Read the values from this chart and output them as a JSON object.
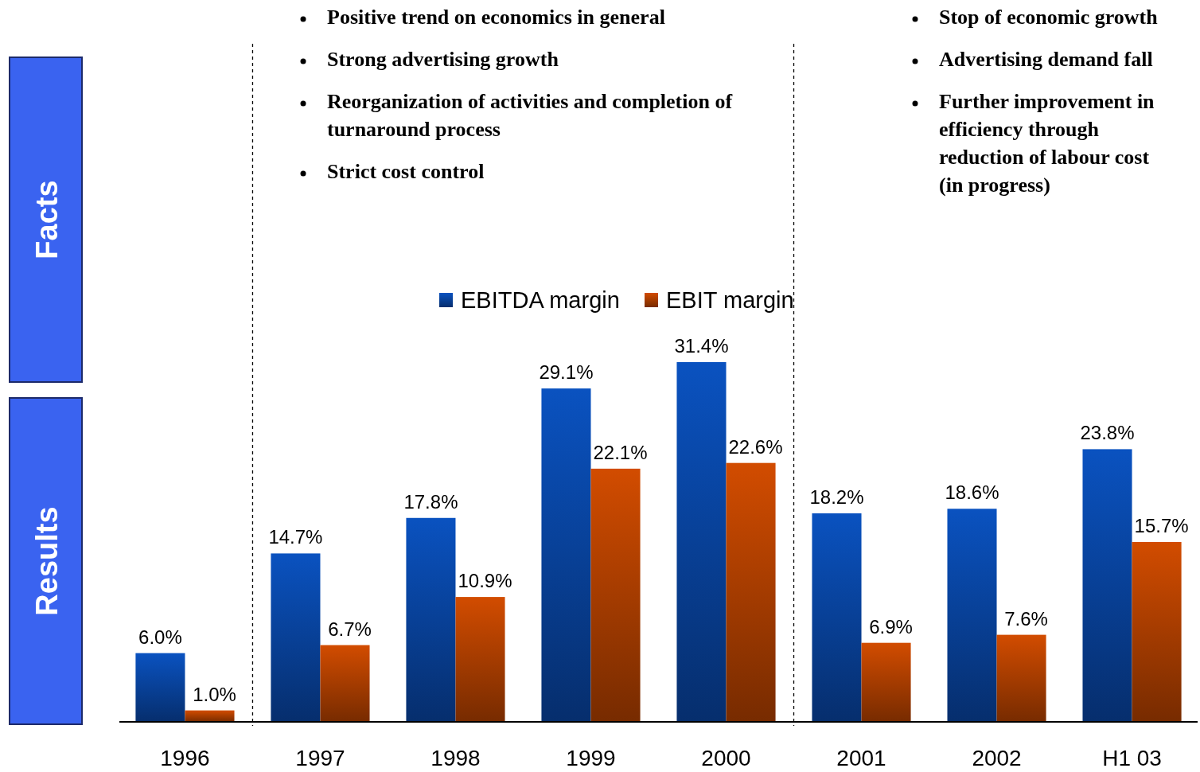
{
  "chart_data": {
    "type": "bar",
    "categories": [
      "1996",
      "1997",
      "1998",
      "1999",
      "2000",
      "2001",
      "2002",
      "H1 03"
    ],
    "series": [
      {
        "name": "EBITDA margin",
        "color": "#0a52c0",
        "values": [
          6.0,
          14.7,
          17.8,
          29.1,
          31.4,
          18.2,
          18.6,
          23.8
        ],
        "value_labels": [
          "6.0%",
          "14.7%",
          "17.8%",
          "29.1%",
          "31.4%",
          "18.2%",
          "18.6%",
          "23.8%"
        ]
      },
      {
        "name": "EBIT margin",
        "color": "#d24c00",
        "values": [
          1.0,
          6.7,
          10.9,
          22.1,
          22.6,
          6.9,
          7.6,
          15.7
        ],
        "value_labels": [
          "1.0%",
          "6.7%",
          "10.9%",
          "22.1%",
          "22.6%",
          "6.9%",
          "7.6%",
          "15.7%"
        ]
      }
    ],
    "legend": "top",
    "grid": false,
    "annotations": [
      "Facts",
      "Results",
      "Positive trend on economics in general",
      "Strong advertising growth",
      "Reorganization of activities and completion of turnaround process",
      "Strict cost control",
      "Stop of economic growth",
      "Advertising demand  fall",
      "Further improvement  in efficiency through reduction of labour cost (in progress)"
    ]
  }
}
